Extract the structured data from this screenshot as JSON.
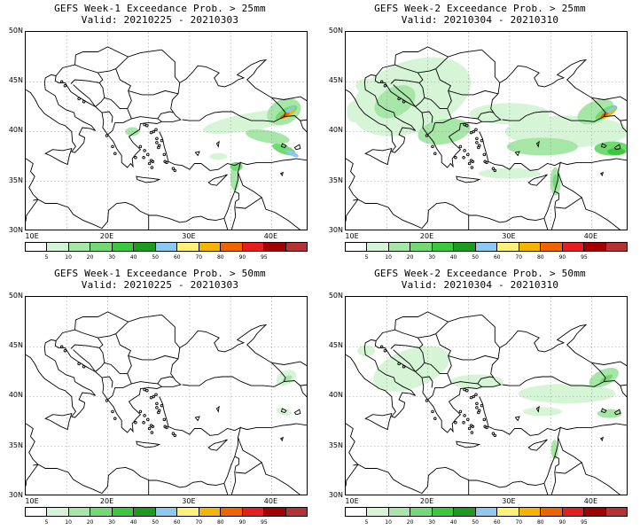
{
  "panels": [
    {
      "title": "GEFS Week-1 Exceedance Prob. > 25mm",
      "valid": "Valid: 20210225 - 20210303",
      "precip_intensity": "moderate-week1-25mm"
    },
    {
      "title": "GEFS Week-2 Exceedance Prob. > 25mm",
      "valid": "Valid: 20210304 - 20210310",
      "precip_intensity": "widespread-week2-25mm"
    },
    {
      "title": "GEFS Week-1 Exceedance Prob. > 50mm",
      "valid": "Valid: 20210225 - 20210303",
      "precip_intensity": "light-week1-50mm"
    },
    {
      "title": "GEFS Week-2 Exceedance Prob. > 50mm",
      "valid": "Valid: 20210304 - 20210310",
      "precip_intensity": "moderate-week2-50mm"
    }
  ],
  "axes": {
    "lat_labels": [
      "50N",
      "45N",
      "40N",
      "35N",
      "30N"
    ],
    "lon_labels": [
      "10E",
      "20E",
      "30E",
      "40E"
    ]
  },
  "colorbar": {
    "labels": [
      "5",
      "10",
      "20",
      "30",
      "40",
      "50",
      "60",
      "70",
      "80",
      "90",
      "95"
    ],
    "colors": [
      "#ffffff",
      "#d6f5d6",
      "#a6e6a6",
      "#73d973",
      "#3cc83c",
      "#1e9b1e",
      "#8cc8f0",
      "#fff07a",
      "#f5b400",
      "#f06400",
      "#e61e1e",
      "#a50000",
      "#b43232"
    ]
  }
}
